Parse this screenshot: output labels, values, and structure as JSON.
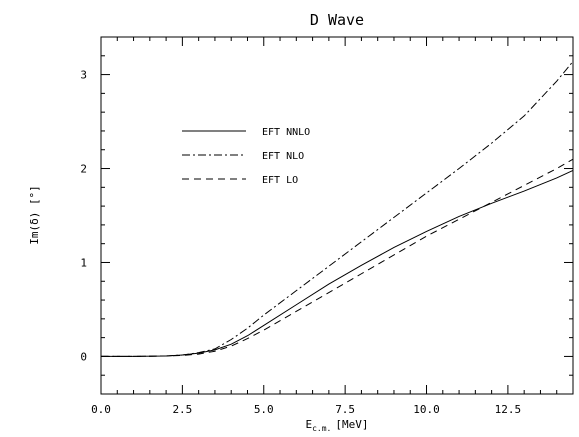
{
  "chart_data": {
    "type": "line",
    "title": "D Wave",
    "xlabel_main": "E",
    "xlabel_sub": "c.m.",
    "xlabel_unit": "[MeV]",
    "ylabel": "Im(δ) [°]",
    "xlim": [
      0,
      14.5
    ],
    "ylim": [
      -0.4,
      3.4
    ],
    "xticks": [
      0.0,
      2.5,
      5.0,
      7.5,
      10.0,
      12.5
    ],
    "xtick_labels": [
      "0.0",
      "2.5",
      "5.0",
      "7.5",
      "10.0",
      "12.5"
    ],
    "yticks": [
      0,
      1,
      2,
      3
    ],
    "ytick_labels": [
      "0",
      "1",
      "2",
      "3"
    ],
    "grid": false,
    "legend_position": "top-left",
    "series": [
      {
        "name": "EFT NNLO",
        "style": "solid",
        "x": [
          0,
          1,
          2,
          2.5,
          3,
          3.5,
          4,
          4.5,
          5,
          6,
          7,
          8,
          9,
          10,
          11,
          12,
          13,
          14,
          14.5
        ],
        "y": [
          0,
          0,
          0.005,
          0.015,
          0.035,
          0.07,
          0.13,
          0.22,
          0.33,
          0.55,
          0.77,
          0.97,
          1.16,
          1.33,
          1.49,
          1.63,
          1.76,
          1.9,
          1.98
        ]
      },
      {
        "name": "EFT NLO",
        "style": "dashdot",
        "x": [
          0,
          1,
          2,
          2.5,
          3,
          3.5,
          4,
          4.5,
          5,
          6,
          7,
          8,
          9,
          10,
          11,
          12,
          13,
          14,
          14.5
        ],
        "y": [
          0,
          0,
          0.005,
          0.015,
          0.04,
          0.08,
          0.18,
          0.3,
          0.44,
          0.7,
          0.96,
          1.22,
          1.48,
          1.74,
          2.0,
          2.27,
          2.56,
          2.93,
          3.14
        ]
      },
      {
        "name": "EFT LO",
        "style": "dashed",
        "x": [
          0,
          1,
          2,
          2.5,
          3,
          3.5,
          4,
          4.5,
          5,
          6,
          7,
          8,
          9,
          10,
          11,
          12,
          13,
          14,
          14.5
        ],
        "y": [
          0,
          0,
          0.005,
          0.01,
          0.025,
          0.055,
          0.11,
          0.19,
          0.28,
          0.48,
          0.68,
          0.88,
          1.08,
          1.28,
          1.46,
          1.64,
          1.82,
          2.0,
          2.1
        ]
      }
    ]
  }
}
